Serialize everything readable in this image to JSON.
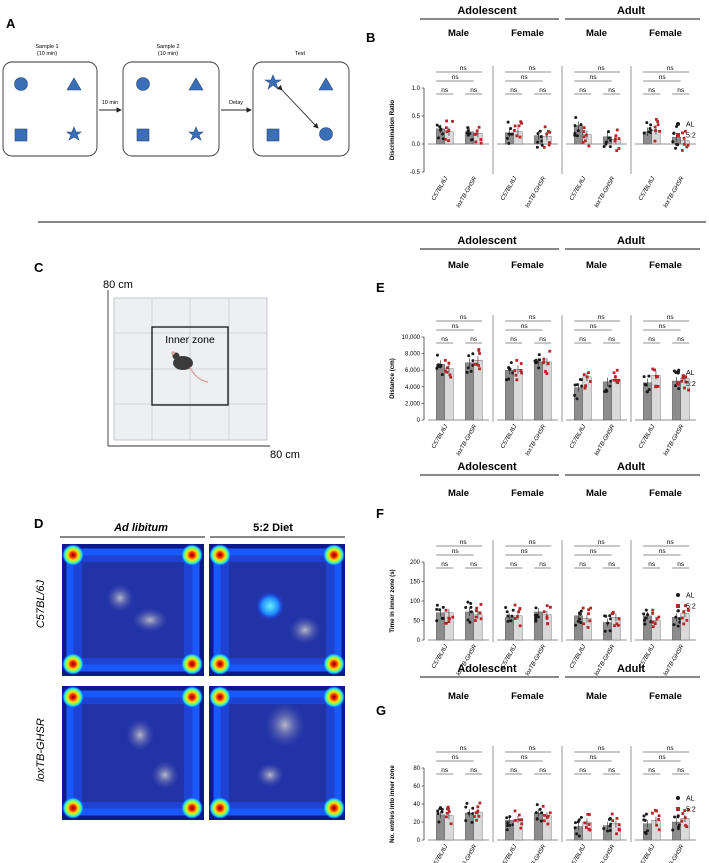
{
  "panel_labels": {
    "A": "A",
    "B": "B",
    "C": "C",
    "D": "D",
    "E": "E",
    "F": "F",
    "G": "G"
  },
  "panel_a": {
    "boxes": [
      {
        "title": "Sample 1",
        "subtitle": "(10 min)"
      },
      {
        "title": "Sample 2",
        "subtitle": "(10 min)"
      },
      {
        "title": "Test",
        "subtitle": ""
      }
    ],
    "arrow1": "10 min",
    "arrow2": "Delay",
    "shape_color": "#3a6fb6"
  },
  "panel_c": {
    "y_dim": "80 cm",
    "x_dim": "80 cm",
    "zone_label": "Inner zone"
  },
  "panel_d": {
    "col_headers": [
      "Ad libitum",
      "5:2 Diet"
    ],
    "row_labels": [
      "C57BL/6J",
      "loxTB-GHSR"
    ]
  },
  "legend": {
    "al": "AL",
    "diet": "5:2",
    "al_color": "#1a1a1a",
    "diet_color": "#b5252a"
  },
  "common": {
    "age_groups": [
      "Adolescent",
      "Adult"
    ],
    "sexes": [
      "Male",
      "Female",
      "Male",
      "Female"
    ],
    "strains": [
      "C57BL/6J",
      "loxTB-GHSR"
    ],
    "ns": "ns",
    "bar_al_color": "#8c8c8c",
    "bar_diet_color": "#d9d9d9"
  },
  "chart_data": [
    {
      "panel": "B",
      "type": "bar",
      "ylabel": "Discrimination Ratio",
      "ylim": [
        -0.5,
        1.0
      ],
      "yticks": [
        "1.0",
        "0.5",
        "0.0",
        "-0.5"
      ],
      "groups": [
        "Adolescent Male",
        "Adolescent Female",
        "Adult Male",
        "Adult Female"
      ],
      "categories": [
        "C57BL/6J",
        "loxTB-GHSR"
      ],
      "series": [
        {
          "name": "AL",
          "values": [
            [
              0.27,
              0.22
            ],
            [
              0.2,
              0.15
            ],
            [
              0.33,
              0.13
            ],
            [
              0.22,
              0.12
            ]
          ]
        },
        {
          "name": "5:2",
          "values": [
            [
              0.22,
              0.19
            ],
            [
              0.22,
              0.14
            ],
            [
              0.17,
              0.08
            ],
            [
              0.24,
              0.06
            ]
          ]
        }
      ]
    },
    {
      "panel": "E",
      "type": "bar",
      "ylabel": "Distance (cm)",
      "ylim": [
        0,
        10000
      ],
      "yticks": [
        "10,000",
        "8,000",
        "6,000",
        "4,000",
        "2,000",
        "0"
      ],
      "groups": [
        "Adolescent Male",
        "Adolescent Female",
        "Adult Male",
        "Adult Female"
      ],
      "categories": [
        "C57BL/6J",
        "loxTB-GHSR"
      ],
      "series": [
        {
          "name": "AL",
          "values": [
            [
              6700,
              6900
            ],
            [
              6000,
              7000
            ],
            [
              3900,
              4600
            ],
            [
              4500,
              4700
            ]
          ]
        },
        {
          "name": "5:2",
          "values": [
            [
              6200,
              7200
            ],
            [
              6100,
              7000
            ],
            [
              5200,
              4900
            ],
            [
              5400,
              5000
            ]
          ]
        }
      ]
    },
    {
      "panel": "F",
      "type": "bar",
      "ylabel": "Time in inner zone (s)",
      "ylim": [
        0,
        200
      ],
      "yticks": [
        "200",
        "150",
        "100",
        "50",
        "0"
      ],
      "groups": [
        "Adolescent Male",
        "Adolescent Female",
        "Adult Male",
        "Adult Female"
      ],
      "categories": [
        "C57BL/6J",
        "loxTB-GHSR"
      ],
      "series": [
        {
          "name": "AL",
          "values": [
            [
              70,
              72
            ],
            [
              58,
              72
            ],
            [
              62,
              45
            ],
            [
              62,
              58
            ]
          ]
        },
        {
          "name": "5:2",
          "values": [
            [
              70,
              65
            ],
            [
              62,
              65
            ],
            [
              55,
              58
            ],
            [
              50,
              68
            ]
          ]
        }
      ]
    },
    {
      "panel": "G",
      "type": "bar",
      "ylabel": "No. entries into inner zone",
      "ylim": [
        0,
        80
      ],
      "yticks": [
        "80",
        "60",
        "40",
        "20",
        "0"
      ],
      "groups": [
        "Adolescent Male",
        "Adolescent Female",
        "Adult Male",
        "Adult Female"
      ],
      "categories": [
        "C57BL/6J",
        "loxTB-GHSR"
      ],
      "series": [
        {
          "name": "AL",
          "values": [
            [
              28,
              30
            ],
            [
              22,
              30
            ],
            [
              15,
              16
            ],
            [
              18,
              20
            ]
          ]
        },
        {
          "name": "5:2",
          "values": [
            [
              27,
              31
            ],
            [
              23,
              27
            ],
            [
              20,
              18
            ],
            [
              22,
              24
            ]
          ]
        }
      ]
    }
  ]
}
